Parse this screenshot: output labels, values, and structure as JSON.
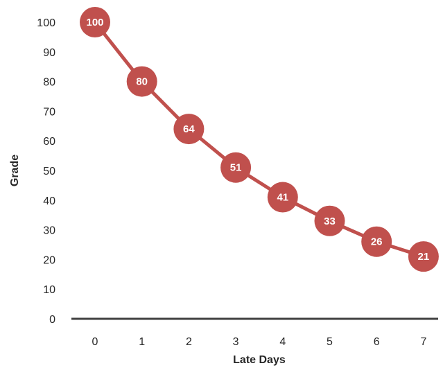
{
  "chart_data": {
    "type": "line",
    "x": [
      0,
      1,
      2,
      3,
      4,
      5,
      6,
      7
    ],
    "series": [
      {
        "values": [
          100,
          80,
          64,
          51,
          41,
          33,
          26,
          21
        ]
      }
    ],
    "data_labels": [
      "100",
      "80",
      "64",
      "51",
      "41",
      "33",
      "26",
      "21"
    ],
    "xlabel": "Late Days",
    "ylabel": "Grade",
    "x_ticks": [
      "0",
      "1",
      "2",
      "3",
      "4",
      "5",
      "6",
      "7"
    ],
    "y_ticks": [
      "0",
      "10",
      "20",
      "30",
      "40",
      "50",
      "60",
      "70",
      "80",
      "90",
      "100"
    ],
    "ylim": [
      0,
      100
    ],
    "grid": false,
    "legend": "none",
    "colors": {
      "series": "#c0504d",
      "marker_label": "#ffffff",
      "axis_line": "#404040",
      "text": "#262626"
    }
  }
}
